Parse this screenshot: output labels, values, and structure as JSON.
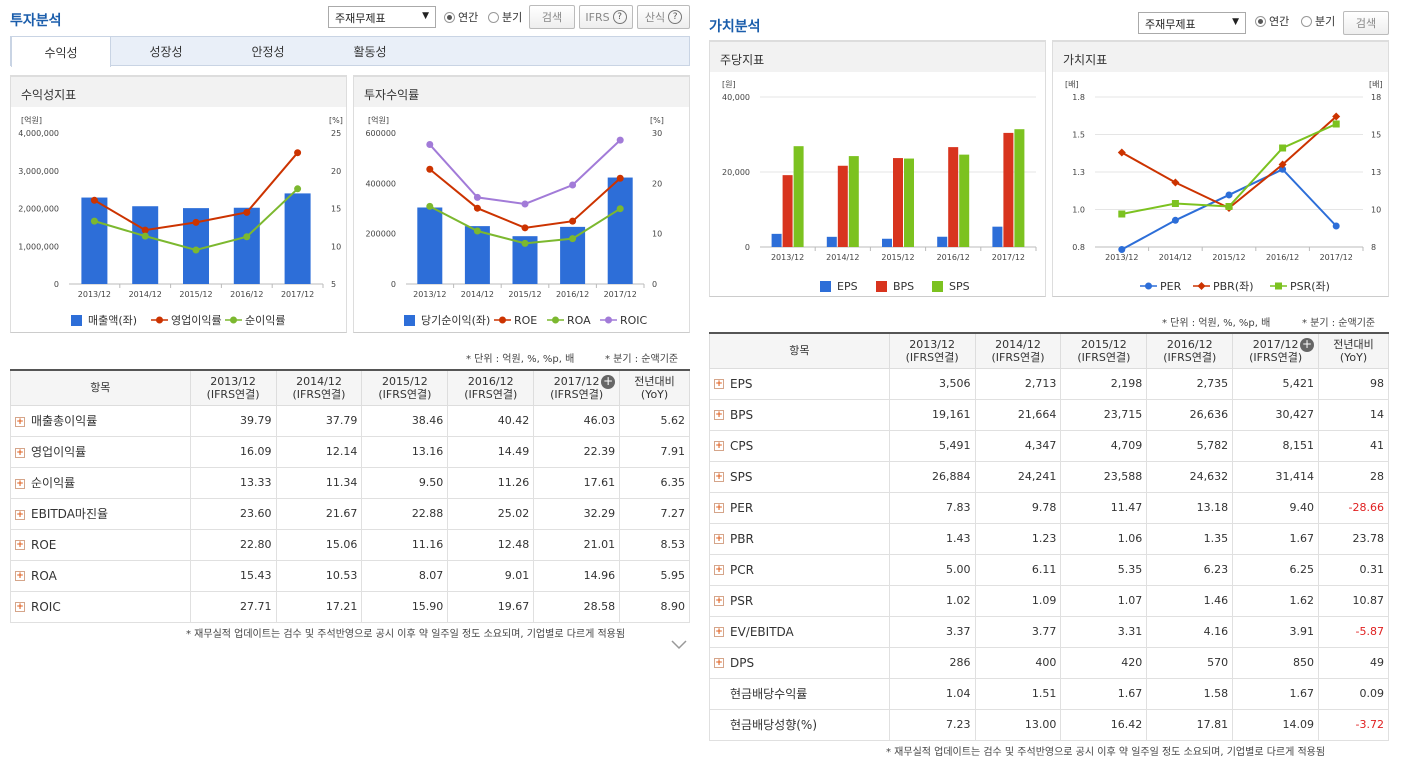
{
  "left": {
    "title": "투자분석",
    "select_value": "주재무제표",
    "radio_annual": "연간",
    "radio_quarter": "분기",
    "search_label": "검색",
    "ifrs_label": "IFRS",
    "formula_label": "산식",
    "tabs": [
      "수익성",
      "성장성",
      "안정성",
      "활동성"
    ],
    "panel1_title": "수익성지표",
    "panel2_title": "투자수익률",
    "unit_note": "* 단위 : 억원, %, %p, 배",
    "quarter_note": "* 분기 : 순액기준",
    "table_header_item": "항목",
    "table_headers": [
      [
        "2013/12",
        "(IFRS연결)"
      ],
      [
        "2014/12",
        "(IFRS연결)"
      ],
      [
        "2015/12",
        "(IFRS연결)"
      ],
      [
        "2016/12",
        "(IFRS연결)"
      ],
      [
        "2017/12",
        "(IFRS연결)"
      ],
      [
        "전년대비",
        "(YoY)"
      ]
    ],
    "rows": [
      {
        "label": "매출총이익률",
        "v": [
          "39.79",
          "37.79",
          "38.46",
          "40.42",
          "46.03",
          "5.62"
        ]
      },
      {
        "label": "영업이익률",
        "v": [
          "16.09",
          "12.14",
          "13.16",
          "14.49",
          "22.39",
          "7.91"
        ]
      },
      {
        "label": "순이익률",
        "v": [
          "13.33",
          "11.34",
          "9.50",
          "11.26",
          "17.61",
          "6.35"
        ]
      },
      {
        "label": "EBITDA마진율",
        "v": [
          "23.60",
          "21.67",
          "22.88",
          "25.02",
          "32.29",
          "7.27"
        ]
      },
      {
        "label": "ROE",
        "v": [
          "22.80",
          "15.06",
          "11.16",
          "12.48",
          "21.01",
          "8.53"
        ]
      },
      {
        "label": "ROA",
        "v": [
          "15.43",
          "10.53",
          "8.07",
          "9.01",
          "14.96",
          "5.95"
        ]
      },
      {
        "label": "ROIC",
        "v": [
          "27.71",
          "17.21",
          "15.90",
          "19.67",
          "28.58",
          "8.90"
        ]
      }
    ],
    "footer_note": "* 재무실적 업데이트는 검수 및 주석반영으로 공시 이후 약 일주일 정도 소요되며, 기업별로 다르게 적용됨"
  },
  "right": {
    "title": "가치분석",
    "select_value": "주재무제표",
    "radio_annual": "연간",
    "radio_quarter": "분기",
    "search_label": "검색",
    "panel1_title": "주당지표",
    "panel2_title": "가치지표",
    "unit_note": "* 단위 : 억원, %, %p, 배",
    "quarter_note": "* 분기 : 순액기준",
    "table_header_item": "항목",
    "table_headers": [
      [
        "2013/12",
        "(IFRS연결)"
      ],
      [
        "2014/12",
        "(IFRS연결)"
      ],
      [
        "2015/12",
        "(IFRS연결)"
      ],
      [
        "2016/12",
        "(IFRS연결)"
      ],
      [
        "2017/12",
        "(IFRS연결)"
      ],
      [
        "전년대비",
        "(YoY)"
      ]
    ],
    "rows": [
      {
        "label": "EPS",
        "plus": true,
        "v": [
          "3,506",
          "2,713",
          "2,198",
          "2,735",
          "5,421",
          "98"
        ]
      },
      {
        "label": "BPS",
        "plus": true,
        "v": [
          "19,161",
          "21,664",
          "23,715",
          "26,636",
          "30,427",
          "14"
        ]
      },
      {
        "label": "CPS",
        "plus": true,
        "v": [
          "5,491",
          "4,347",
          "4,709",
          "5,782",
          "8,151",
          "41"
        ]
      },
      {
        "label": "SPS",
        "plus": true,
        "v": [
          "26,884",
          "24,241",
          "23,588",
          "24,632",
          "31,414",
          "28"
        ]
      },
      {
        "label": "PER",
        "plus": true,
        "v": [
          "7.83",
          "9.78",
          "11.47",
          "13.18",
          "9.40",
          "-28.66"
        ]
      },
      {
        "label": "PBR",
        "plus": true,
        "v": [
          "1.43",
          "1.23",
          "1.06",
          "1.35",
          "1.67",
          "23.78"
        ]
      },
      {
        "label": "PCR",
        "plus": true,
        "v": [
          "5.00",
          "6.11",
          "5.35",
          "6.23",
          "6.25",
          "0.31"
        ]
      },
      {
        "label": "PSR",
        "plus": true,
        "v": [
          "1.02",
          "1.09",
          "1.07",
          "1.46",
          "1.62",
          "10.87"
        ]
      },
      {
        "label": "EV/EBITDA",
        "plus": true,
        "v": [
          "3.37",
          "3.77",
          "3.31",
          "4.16",
          "3.91",
          "-5.87"
        ]
      },
      {
        "label": "DPS",
        "plus": true,
        "v": [
          "286",
          "400",
          "420",
          "570",
          "850",
          "49"
        ]
      },
      {
        "label": "현금배당수익률",
        "plus": false,
        "v": [
          "1.04",
          "1.51",
          "1.67",
          "1.58",
          "1.67",
          "0.09"
        ]
      },
      {
        "label": "현금배당성향(%)",
        "plus": false,
        "v": [
          "7.23",
          "13.00",
          "16.42",
          "17.81",
          "14.09",
          "-3.72"
        ]
      }
    ],
    "footer_note": "* 재무실적 업데이트는 검수 및 주석반영으로 공시 이후 약 일주일 정도 소요되며, 기업별로 다르게 적용됨"
  },
  "chart_data": [
    {
      "type": "bar",
      "title": "수익성지표",
      "categories": [
        "2013/12",
        "2014/12",
        "2015/12",
        "2016/12",
        "2017/12"
      ],
      "y_unit_left": "[억원]",
      "y_unit_right": "[%]",
      "ylim": [
        0,
        4000000
      ],
      "yticks": [
        "0",
        "1,000,000",
        "2,000,000",
        "3,000,000",
        "4,000,000"
      ],
      "ylim_right": [
        5,
        25
      ],
      "yticks_right": [
        "5",
        "10",
        "15",
        "20",
        "25"
      ],
      "series": [
        {
          "name": "매출액(좌)",
          "kind": "bar",
          "axis": "left",
          "color": "#2d6ed8",
          "values": [
            2290000,
            2060000,
            2010000,
            2020000,
            2400000
          ]
        },
        {
          "name": "영업이익률",
          "kind": "line",
          "axis": "right",
          "color": "#cc3300",
          "values": [
            16.09,
            12.14,
            13.16,
            14.49,
            22.39
          ]
        },
        {
          "name": "순이익률",
          "kind": "line",
          "axis": "right",
          "color": "#7cb82f",
          "values": [
            13.33,
            11.34,
            9.5,
            11.26,
            17.61
          ]
        }
      ]
    },
    {
      "type": "bar",
      "title": "투자수익률",
      "categories": [
        "2013/12",
        "2014/12",
        "2015/12",
        "2016/12",
        "2017/12"
      ],
      "y_unit_left": "[억원]",
      "y_unit_right": "[%]",
      "ylim": [
        0,
        600000
      ],
      "yticks": [
        "0",
        "200000",
        "400000",
        "600000"
      ],
      "ylim_right": [
        0,
        30
      ],
      "yticks_right": [
        "0",
        "10",
        "20",
        "30"
      ],
      "series": [
        {
          "name": "당기순이익(좌)",
          "kind": "bar",
          "axis": "left",
          "color": "#2d6ed8",
          "values": [
            304000,
            230000,
            190000,
            227000,
            423000
          ]
        },
        {
          "name": "ROE",
          "kind": "line",
          "axis": "right",
          "color": "#cc3300",
          "values": [
            22.8,
            15.06,
            11.16,
            12.48,
            21.01
          ]
        },
        {
          "name": "ROA",
          "kind": "line",
          "axis": "right",
          "color": "#7cb82f",
          "values": [
            15.43,
            10.53,
            8.07,
            9.01,
            14.96
          ]
        },
        {
          "name": "ROIC",
          "kind": "line",
          "axis": "right",
          "color": "#a27bd8",
          "values": [
            27.71,
            17.21,
            15.9,
            19.67,
            28.58
          ]
        }
      ]
    },
    {
      "type": "bar",
      "title": "주당지표",
      "categories": [
        "2013/12",
        "2014/12",
        "2015/12",
        "2016/12",
        "2017/12"
      ],
      "y_unit_left": "[원]",
      "ylim": [
        0,
        40000
      ],
      "yticks": [
        "0",
        "20,000",
        "40,000"
      ],
      "series": [
        {
          "name": "EPS",
          "kind": "bar",
          "axis": "left",
          "color": "#2d6ed8",
          "values": [
            3506,
            2713,
            2198,
            2735,
            5421
          ]
        },
        {
          "name": "BPS",
          "kind": "bar",
          "axis": "left",
          "color": "#d8341e",
          "values": [
            19161,
            21664,
            23715,
            26636,
            30427
          ]
        },
        {
          "name": "SPS",
          "kind": "bar",
          "axis": "left",
          "color": "#7cc220",
          "values": [
            26884,
            24241,
            23588,
            24632,
            31414
          ]
        }
      ]
    },
    {
      "type": "line",
      "title": "가치지표",
      "categories": [
        "2013/12",
        "2014/12",
        "2015/12",
        "2016/12",
        "2017/12"
      ],
      "y_unit_left": "[배]",
      "y_unit_right": "[배]",
      "ylim": [
        0.8,
        1.8
      ],
      "yticks": [
        "0.8",
        "1.0",
        "1.3",
        "1.5",
        "1.8"
      ],
      "ylim_right": [
        8,
        18
      ],
      "yticks_right": [
        "8",
        "10",
        "13",
        "15",
        "18"
      ],
      "series": [
        {
          "name": "PER",
          "kind": "line",
          "axis": "right",
          "color": "#2d6ed8",
          "marker": "circle",
          "values": [
            7.83,
            9.78,
            11.47,
            13.18,
            9.4
          ]
        },
        {
          "name": "PBR(좌)",
          "kind": "line",
          "axis": "left",
          "color": "#cc3300",
          "marker": "diamond",
          "values": [
            1.43,
            1.23,
            1.06,
            1.35,
            1.67
          ]
        },
        {
          "name": "PSR(좌)",
          "kind": "line",
          "axis": "left",
          "color": "#7cc220",
          "marker": "square",
          "values": [
            1.02,
            1.09,
            1.07,
            1.46,
            1.62
          ]
        }
      ]
    }
  ]
}
